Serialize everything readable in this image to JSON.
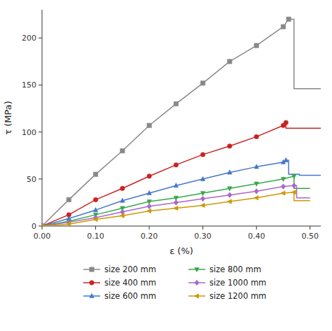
{
  "chart_data": {
    "type": "line",
    "xlabel": "ε (%)",
    "ylabel": "τ (MPa)",
    "xlim": [
      0.0,
      0.52
    ],
    "ylim": [
      0,
      230
    ],
    "xticks": [
      {
        "value": 0.0,
        "label": "0.00"
      },
      {
        "value": 0.1,
        "label": "0.10"
      },
      {
        "value": 0.2,
        "label": "0.20"
      },
      {
        "value": 0.3,
        "label": "0.30"
      },
      {
        "value": 0.4,
        "label": "0.40"
      },
      {
        "value": 0.5,
        "label": "0.50"
      }
    ],
    "yticks": [
      0,
      50,
      100,
      150,
      200
    ],
    "grid": false,
    "legend": "bottom",
    "series": [
      {
        "name": "size 200 mm",
        "color": "#888888",
        "marker": "square",
        "x": [
          0.0,
          0.05,
          0.1,
          0.15,
          0.2,
          0.25,
          0.3,
          0.35,
          0.4,
          0.45,
          0.46
        ],
        "values": [
          0,
          28,
          55,
          80,
          107,
          130,
          152,
          175,
          192,
          212,
          220
        ],
        "drop_x": [
          0.46,
          0.47,
          0.47,
          0.52
        ],
        "drop_values": [
          220,
          220,
          146,
          146
        ]
      },
      {
        "name": "size 400 mm",
        "color": "#cc2222",
        "marker": "circle",
        "x": [
          0.0,
          0.05,
          0.1,
          0.15,
          0.2,
          0.25,
          0.3,
          0.35,
          0.4,
          0.45,
          0.455
        ],
        "values": [
          0,
          12,
          28,
          40,
          53,
          65,
          76,
          85,
          95,
          107,
          110
        ],
        "drop_x": [
          0.455,
          0.455,
          0.52
        ],
        "drop_values": [
          110,
          104,
          104
        ]
      },
      {
        "name": "size 600 mm",
        "color": "#4477cc",
        "marker": "triangle-up",
        "x": [
          0.0,
          0.05,
          0.1,
          0.15,
          0.2,
          0.25,
          0.3,
          0.35,
          0.4,
          0.45,
          0.455
        ],
        "values": [
          0,
          8,
          17,
          27,
          35,
          43,
          50,
          57,
          63,
          68,
          70
        ],
        "drop_x": [
          0.455,
          0.46,
          0.46,
          0.48,
          0.48,
          0.52
        ],
        "drop_values": [
          70,
          70,
          55,
          55,
          54,
          54
        ]
      },
      {
        "name": "size 800 mm",
        "color": "#33aa44",
        "marker": "triangle-down",
        "x": [
          0.0,
          0.05,
          0.1,
          0.15,
          0.2,
          0.25,
          0.3,
          0.35,
          0.4,
          0.45,
          0.47
        ],
        "values": [
          0,
          5,
          12,
          19,
          26,
          30,
          35,
          40,
          45,
          50,
          53
        ],
        "drop_x": [
          0.47,
          0.47,
          0.5,
          0.5
        ],
        "drop_values": [
          53,
          40,
          40,
          40
        ]
      },
      {
        "name": "size 1000 mm",
        "color": "#aa66cc",
        "marker": "diamond",
        "x": [
          0.0,
          0.05,
          0.1,
          0.15,
          0.2,
          0.25,
          0.3,
          0.35,
          0.4,
          0.45,
          0.47
        ],
        "values": [
          0,
          4,
          9,
          15,
          21,
          25,
          29,
          33,
          37,
          42,
          43
        ],
        "drop_x": [
          0.47,
          0.475,
          0.475,
          0.5
        ],
        "drop_values": [
          43,
          43,
          30,
          30
        ]
      },
      {
        "name": "size 1200 mm",
        "color": "#cc9900",
        "marker": "triangle-left",
        "x": [
          0.0,
          0.05,
          0.1,
          0.15,
          0.2,
          0.25,
          0.3,
          0.35,
          0.4,
          0.45,
          0.47
        ],
        "values": [
          0,
          2,
          7,
          11,
          16,
          19,
          22,
          26,
          30,
          35,
          36
        ],
        "drop_x": [
          0.47,
          0.47,
          0.5
        ],
        "drop_values": [
          36,
          27,
          27
        ]
      }
    ]
  }
}
